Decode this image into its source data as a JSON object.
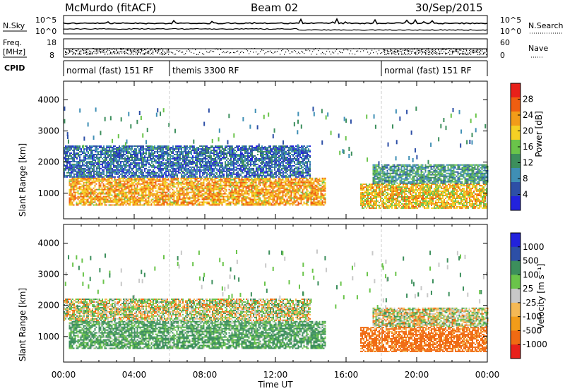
{
  "header": {
    "station": "McMurdo (fitACF)",
    "beam": "Beam 02",
    "date": "30/Sep/2015"
  },
  "top_panels": {
    "nsky_label": "N.Sky",
    "nsearch_label": "N.Search",
    "freq_label_1": "Freq.",
    "freq_label_2": "[MHz]",
    "nave_label": "Nave",
    "cpid_label": "CPID",
    "noise_ticks_left": [
      "10^5",
      "10^0"
    ],
    "noise_ticks_right": [
      "10^5",
      "10^0"
    ],
    "freq_ticks": [
      "18",
      "8"
    ],
    "nave_ticks": [
      "60",
      "0"
    ],
    "cpid_segments": [
      {
        "label": "normal (fast) 151 RF",
        "start_h": 0,
        "end_h": 6
      },
      {
        "label": "themis 3300 RF",
        "start_h": 6,
        "end_h": 18
      },
      {
        "label": "normal (fast) 151 RF",
        "start_h": 18,
        "end_h": 24
      }
    ]
  },
  "chart_data": [
    {
      "type": "heatmap",
      "title": "Power",
      "ylabel": "Slant Range [km]",
      "xlabel": "",
      "x_range_hours": [
        0,
        24
      ],
      "ylim": [
        180,
        4600
      ],
      "yticks": [
        "4000",
        "3000",
        "2000",
        "1000"
      ],
      "colorbar": {
        "label": "Power [dB]",
        "ticks": [
          "28",
          "24",
          "20",
          "16",
          "12",
          "8",
          "4"
        ],
        "range": [
          0,
          30
        ]
      },
      "echo_regions": [
        {
          "start_h": 0.3,
          "end_h": 14.8,
          "range_km": [
            600,
            1500
          ],
          "typical_dB": 22
        },
        {
          "start_h": 0,
          "end_h": 14,
          "range_km": [
            1500,
            2500
          ],
          "typical_dB": 6
        },
        {
          "start_h": 16.8,
          "end_h": 24,
          "range_km": [
            500,
            1300
          ],
          "typical_dB": 20
        },
        {
          "start_h": 17.5,
          "end_h": 24,
          "range_km": [
            1300,
            1900
          ],
          "typical_dB": 10
        }
      ]
    },
    {
      "type": "heatmap",
      "title": "Velocity",
      "ylabel": "Slant Range [km]",
      "xlabel": "Time UT",
      "x_range_hours": [
        0,
        24
      ],
      "ylim": [
        180,
        4600
      ],
      "yticks": [
        "4000",
        "3000",
        "2000",
        "1000"
      ],
      "xticks": [
        "00:00",
        "04:00",
        "08:00",
        "12:00",
        "16:00",
        "20:00",
        "00:00"
      ],
      "colorbar": {
        "label": "Velocity [m s⁻¹]",
        "ticks": [
          "1000",
          "500",
          "100",
          "25",
          "-25",
          "-100",
          "-500",
          "-1000"
        ],
        "range": [
          -1000,
          1000
        ]
      },
      "echo_regions": [
        {
          "start_h": 0.3,
          "end_h": 14.8,
          "range_km": [
            600,
            1500
          ],
          "typical_ms": 150
        },
        {
          "start_h": 0,
          "end_h": 14,
          "range_km": [
            1500,
            2200
          ],
          "typical_ms": 0
        },
        {
          "start_h": 16.8,
          "end_h": 24,
          "range_km": [
            500,
            1300
          ],
          "typical_ms": -200
        },
        {
          "start_h": 17.5,
          "end_h": 24,
          "range_km": [
            1300,
            1900
          ],
          "typical_ms": 0
        }
      ]
    }
  ],
  "colors": {
    "power_scale": [
      "#2222dd",
      "#2d4fa6",
      "#3f8fb5",
      "#3c8f5c",
      "#6ac44a",
      "#f5d024",
      "#f29c19",
      "#ef5e10",
      "#e8201a"
    ],
    "velocity_scale": [
      "#e8201a",
      "#f06a12",
      "#f29c19",
      "#f5b955",
      "#c8c8c8",
      "#6ac44a",
      "#3c8f5c",
      "#2d4fa6",
      "#2222dd"
    ]
  }
}
